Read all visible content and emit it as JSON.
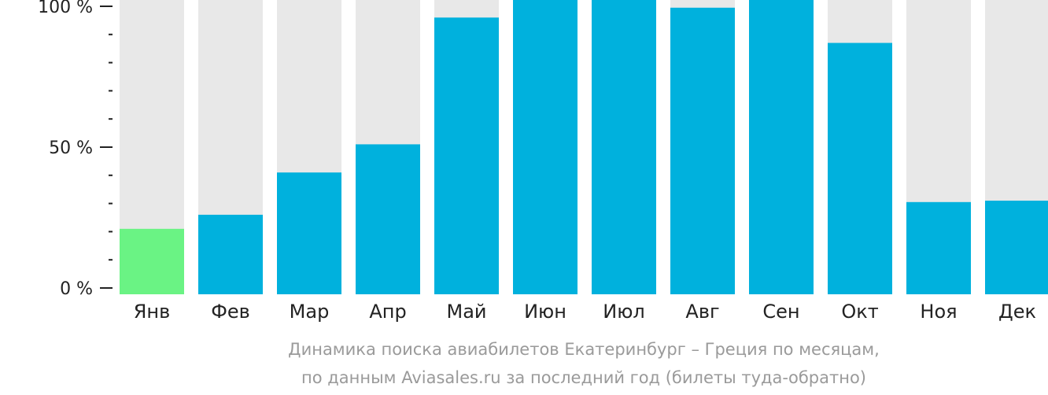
{
  "chart_data": {
    "type": "bar",
    "categories": [
      "Янв",
      "Фев",
      "Мар",
      "Апр",
      "Май",
      "Июн",
      "Июл",
      "Авг",
      "Сен",
      "Окт",
      "Ноя",
      "Дек"
    ],
    "values": [
      21,
      26,
      41,
      51,
      96,
      100,
      100,
      99.5,
      100,
      87,
      30.5,
      31
    ],
    "highlight_index": 0,
    "ylim": [
      0,
      100
    ],
    "ytick_labels": [
      "0 %",
      "50 %",
      "100 %"
    ],
    "colors": {
      "bar": "#00b1dd",
      "highlight": "#6af384",
      "background_bar": "#e8e8e8",
      "axis": "#222222"
    },
    "caption_line1": "Динамика поиска авиабилетов Екатеринбург – Греция по месяцам,",
    "caption_line2": "по данным Aviasales.ru за последний год (билеты туда-обратно)"
  }
}
